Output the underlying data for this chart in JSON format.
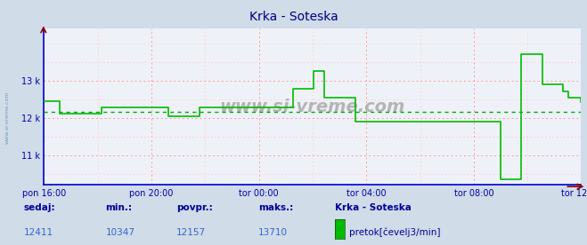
{
  "title": "Krka - Soteska",
  "bg_color": "#d0dce8",
  "plot_bg_color": "#eef2f8",
  "grid_color_major": "#ff9999",
  "grid_color_minor": "#ffcccc",
  "line_color": "#00bb00",
  "avg_line_color": "#00aa00",
  "x_labels": [
    "pon 16:00",
    "pon 20:00",
    "tor 00:00",
    "tor 04:00",
    "tor 08:00",
    "tor 12:00"
  ],
  "x_positions": [
    0,
    48,
    96,
    144,
    192,
    240
  ],
  "y_ticks": [
    11000,
    12000,
    13000
  ],
  "y_tick_labels": [
    "11 k",
    "12 k",
    "13 k"
  ],
  "ylim_min": 10200,
  "ylim_max": 14400,
  "avg_value": 12157,
  "min_value": 10347,
  "max_value": 13710,
  "current_value": 12411,
  "legend_label": "pretok[čevelj3/min]",
  "legend_station": "Krka - Soteska",
  "watermark": "www.si-vreme.com",
  "left_label": "www.si-vreme.com",
  "series": [
    12450,
    12450,
    12450,
    12450,
    12450,
    12450,
    12100,
    12100,
    12100,
    12100,
    12100,
    12100,
    12100,
    12100,
    12100,
    12100,
    12100,
    12100,
    12100,
    12100,
    12100,
    12100,
    12280,
    12280,
    12280,
    12280,
    12280,
    12280,
    12280,
    12280,
    12280,
    12280,
    12280,
    12280,
    12280,
    12280,
    12280,
    12280,
    12280,
    12280,
    12280,
    12280,
    12280,
    12280,
    12280,
    12280,
    12280,
    12280,
    12050,
    12050,
    12050,
    12050,
    12050,
    12050,
    12050,
    12050,
    12050,
    12050,
    12050,
    12050,
    12280,
    12280,
    12280,
    12280,
    12280,
    12280,
    12280,
    12280,
    12280,
    12280,
    12280,
    12280,
    12280,
    12280,
    12280,
    12280,
    12280,
    12280,
    12280,
    12280,
    12280,
    12280,
    12280,
    12280,
    12280,
    12280,
    12280,
    12280,
    12280,
    12280,
    12280,
    12280,
    12280,
    12280,
    12280,
    12280,
    12780,
    12780,
    12780,
    12780,
    12780,
    12780,
    12780,
    12780,
    13250,
    13250,
    13250,
    13250,
    12550,
    12550,
    12550,
    12550,
    12550,
    12550,
    12550,
    12550,
    12550,
    12550,
    12550,
    12550,
    11900,
    11900,
    11900,
    11900,
    11900,
    11900,
    11900,
    11900,
    11900,
    11900,
    11900,
    11900,
    11900,
    11900,
    11900,
    11900,
    11900,
    11900,
    11900,
    11900,
    11900,
    11900,
    11900,
    11900,
    11900,
    11900,
    11900,
    11900,
    11900,
    11900,
    11900,
    11900,
    11900,
    11900,
    11900,
    11900,
    11900,
    11900,
    11900,
    11900,
    11900,
    11900,
    11900,
    11900,
    11900,
    11900,
    11900,
    11900,
    11900,
    11900,
    11900,
    11900,
    11900,
    11900,
    11900,
    11900,
    10347,
    10347,
    10347,
    10347,
    10347,
    10347,
    10347,
    10347,
    13710,
    13710,
    13710,
    13710,
    13710,
    13710,
    13710,
    13710,
    12900,
    12900,
    12900,
    12900,
    12900,
    12900,
    12900,
    12900,
    12700,
    12700,
    12550,
    12550,
    12550,
    12550,
    12550,
    12411
  ]
}
